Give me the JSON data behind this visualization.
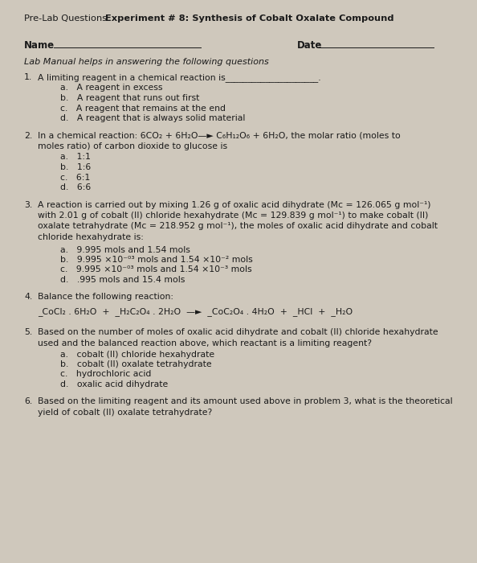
{
  "background_color": "#cfc8bc",
  "text_color": "#1a1a1a",
  "title_normal": "Pre-Lab Questions",
  "title_bold": "Experiment # 8: Synthesis of Cobalt Oxalate Compound",
  "name_label": "Name",
  "date_label": "Date",
  "italic_line": "Lab Manual helps in answering the following questions",
  "q1_text": "A limiting reagent in a chemical reaction is_____________________.",
  "q1_choices": [
    "a.   A reagent in excess",
    "b.   A reagent that runs out first",
    "c.   A reagent that remains at the end",
    "d.   A reagent that is always solid material"
  ],
  "q2_text1": "In a chemical reaction: 6CO₂ + 6H₂O—► C₆H₁₂O₆ + 6H₂O, the molar ratio (moles to",
  "q2_text2": "moles ratio) of carbon dioxide to glucose is",
  "q2_choices": [
    "a.   1:1",
    "b.   1:6",
    "c.   6:1",
    "d.   6:6"
  ],
  "q3_text1": "A reaction is carried out by mixing 1.26 g of oxalic acid dihydrate (Mᴄ = 126.065 g mol⁻¹)",
  "q3_text2": "with 2.01 g of cobalt (II) chloride hexahydrate (Mᴄ = 129.839 g mol⁻¹) to make cobalt (II)",
  "q3_text3": "oxalate tetrahydrate (Mᴄ = 218.952 g mol⁻¹), the moles of oxalic acid dihydrate and cobalt",
  "q3_text4": "chloride hexahydrate is:",
  "q3_choices": [
    "a.   9.995 mols and 1.54 mols",
    "b.   9.995 ×10⁻⁰³ mols and 1.54 ×10⁻² mols",
    "c.   9.995 ×10⁻⁰³ mols and 1.54 ×10⁻³ mols",
    "d.   .995 mols and 15.4 mols"
  ],
  "q4_text": "Balance the following reaction:",
  "q4_eq": "_CoCl₂ . 6H₂O  +  _H₂C₂O₄ . 2H₂O  —►  _CoC₂O₄ . 4H₂O  +  _HCl  +  _H₂O",
  "q5_text1": "Based on the number of moles of oxalic acid dihydrate and cobalt (II) chloride hexahydrate",
  "q5_text2": "used and the balanced reaction above, which reactant is a limiting reagent?",
  "q5_choices": [
    "a.   cobalt (II) chloride hexahydrate",
    "b.   cobalt (II) oxalate tetrahydrate",
    "c.   hydrochloric acid",
    "d.   oxalic acid dihydrate"
  ],
  "q6_text1": "Based on the limiting reagent and its amount used above in problem 3, what is the theoretical",
  "q6_text2": "yield of cobalt (II) oxalate tetrahydrate?"
}
